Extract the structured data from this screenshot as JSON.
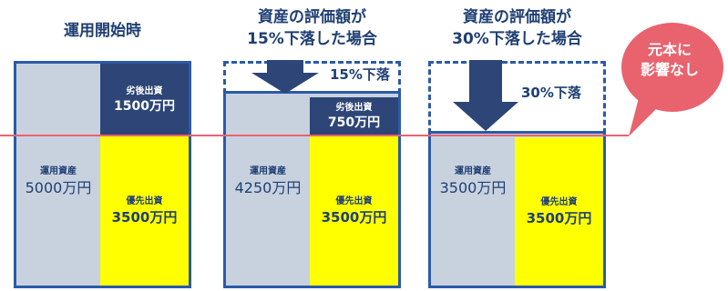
{
  "scenario_start": {
    "heading": "運用開始時",
    "assets_label": "運用資産",
    "assets_value": "5000万円",
    "subordinated_label": "劣後出資",
    "subordinated_value": "1500万円",
    "senior_label": "優先出資",
    "senior_value": "3500万円"
  },
  "scenario_15": {
    "heading_line1": "資産の評価額が",
    "heading_line2": "15%下落した場合",
    "drop_label": "15%下落",
    "assets_label": "運用資産",
    "assets_value": "4250万円",
    "subordinated_label": "劣後出資",
    "subordinated_value": "750万円",
    "senior_label": "優先出資",
    "senior_value": "3500万円"
  },
  "scenario_30": {
    "heading_line1": "資産の評価額が",
    "heading_line2": "30%下落した場合",
    "drop_label": "30%下落",
    "assets_label": "運用資産",
    "assets_value": "3500万円",
    "senior_label": "優先出資",
    "senior_value": "3500万円"
  },
  "callout": {
    "line1": "元本に",
    "line2": "影響なし"
  },
  "colors": {
    "heading": "#1f3f73",
    "border": "#2b5aa8",
    "panel": "#c8d2df",
    "senior_block": "#ffff00",
    "subordinated_block": "#2d4577",
    "threshold_line": "#e8636e",
    "callout": "#e8636e"
  },
  "icons": [
    "down-arrow-icon",
    "speech-bubble-icon"
  ]
}
